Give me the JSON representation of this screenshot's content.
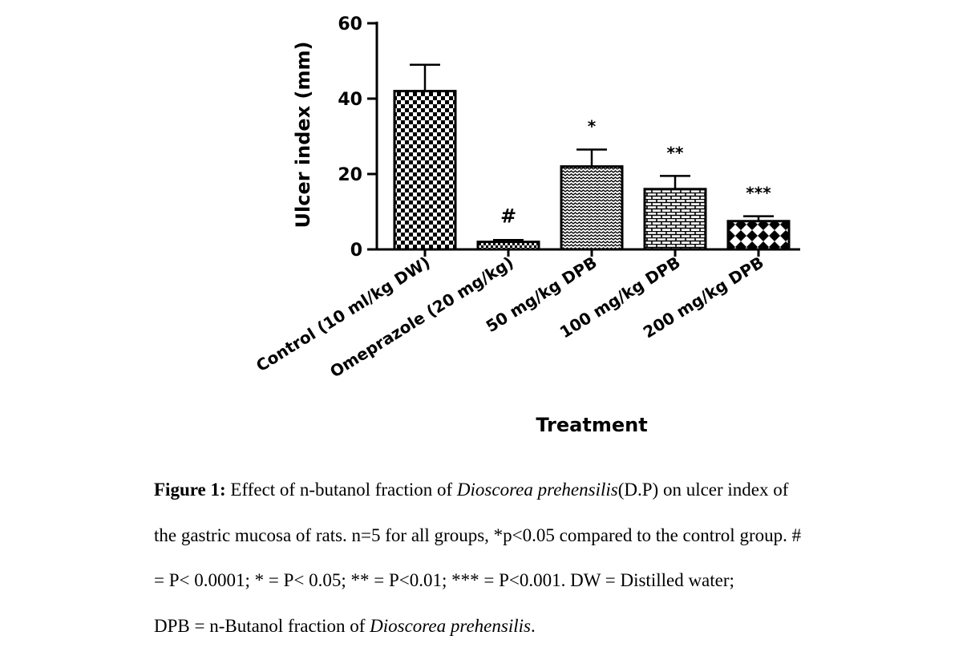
{
  "chart_data": {
    "type": "bar",
    "categories": [
      "Control (10 ml/kg DW)",
      "Omeprazole (20 mg/kg)",
      "50 mg/kg DPB",
      "100 mg/kg DPB",
      "200 mg/kg DPB"
    ],
    "values": [
      42,
      2,
      22,
      16,
      7.5
    ],
    "errors": [
      7,
      0.5,
      4.5,
      3.5,
      1.3
    ],
    "annotations": [
      "",
      "#",
      "*",
      "**",
      "***"
    ],
    "patterns": [
      "checker",
      "dense-check",
      "wave",
      "brick",
      "crosshatch"
    ],
    "xlabel": "Treatment",
    "ylabel": "Ulcer index (mm)",
    "ylim": [
      0,
      60
    ],
    "yticks": [
      "0",
      "20",
      "40",
      "60"
    ],
    "color": "#000000"
  },
  "caption": {
    "label": "Figure 1:",
    "line1_a": " Effect of n-butanol fraction of ",
    "species": "Dioscorea prehensilis",
    "line1_b": "(D.P) on ulcer index of",
    "line2": "the gastric mucosa of rats. n=5 for all groups, *p<0.05 compared to the control group. #",
    "line3": "= P< 0.0001; * = P< 0.05; ** = P<0.01; *** = P<0.001. DW = Distilled water;",
    "line4_a": " DPB = n-Butanol fraction of ",
    "line4_species": "Dioscorea prehensilis",
    "line4_b": "."
  }
}
